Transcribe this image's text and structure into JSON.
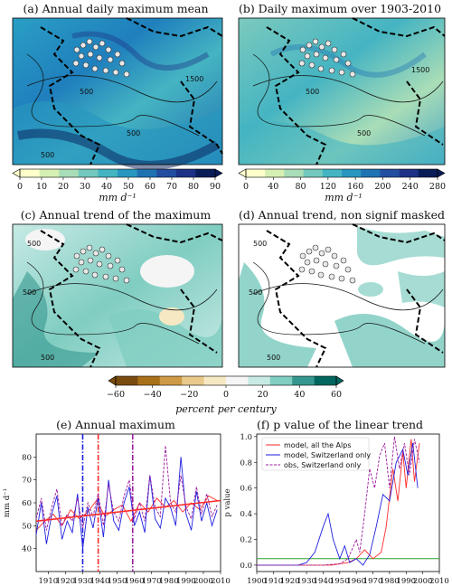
{
  "panels": {
    "a": {
      "title": "(a) Annual daily maximum mean",
      "contours": [
        "500",
        "1500",
        "500",
        "500"
      ]
    },
    "b": {
      "title": "(b) Daily maximum over 1903-2010",
      "contours": [
        "500",
        "1500",
        "500"
      ]
    },
    "c": {
      "title": "(c) Annual trend of the maximum",
      "contours": [
        "500",
        "500",
        "500"
      ]
    },
    "d": {
      "title": "(d) Annual trend, non signif masked",
      "contours": [
        "500",
        "500",
        "500"
      ]
    },
    "e": {
      "title": "(e) Annual maximum"
    },
    "f": {
      "title": "(f) p value of the linear trend"
    }
  },
  "colorbars": {
    "a": {
      "ticks": [
        "0",
        "10",
        "20",
        "30",
        "40",
        "50",
        "60",
        "70",
        "80",
        "90"
      ],
      "label": "mm d⁻¹"
    },
    "b": {
      "ticks": [
        "0",
        "40",
        "80",
        "120",
        "160",
        "200",
        "240",
        "280"
      ],
      "label": "mm d⁻¹"
    },
    "cd": {
      "ticks": [
        "−60",
        "−40",
        "−20",
        "0",
        "20",
        "40",
        "60"
      ],
      "label": "percent per century"
    }
  },
  "colors": {
    "blue_scale": [
      "#ffffcc",
      "#d6efb3",
      "#a9ddb7",
      "#73c9bd",
      "#45b4c2",
      "#2897bf",
      "#2073b2",
      "#234ea0",
      "#1c3185",
      "#081d58"
    ],
    "div_scale": [
      "#7a4b0f",
      "#a9701a",
      "#cf9a45",
      "#e8c98a",
      "#f6e8c3",
      "#f5f5f5",
      "#c7eae5",
      "#80cdc1",
      "#35978f",
      "#01665e"
    ],
    "red": "#ff2a2a",
    "blue": "#1f1fe0",
    "purple": "#9b1b9b",
    "green": "#2ca02c"
  },
  "chart_data": [
    {
      "type": "line",
      "title": "(e) Annual maximum",
      "ylabel": "mm d⁻¹",
      "xlim": [
        1903,
        2010
      ],
      "ylim": [
        30,
        90
      ],
      "xticks": [
        "1910",
        "1920",
        "1930",
        "1940",
        "1950",
        "1960",
        "1970",
        "1980",
        "1990",
        "2000",
        "2010"
      ],
      "yticks": [
        "40",
        "50",
        "60",
        "70",
        "80"
      ],
      "vlines": [
        {
          "x": 1930,
          "color": "blue"
        },
        {
          "x": 1939,
          "color": "red"
        },
        {
          "x": 1959,
          "color": "purple"
        }
      ],
      "series": [
        {
          "color": "red",
          "x": [
            1903,
            1908,
            1913,
            1918,
            1923,
            1928,
            1933,
            1938,
            1943,
            1948,
            1953,
            1958,
            1963,
            1968,
            1973,
            1978,
            1983,
            1988,
            1993,
            1998,
            2003,
            2008
          ],
          "y": [
            48,
            52,
            55,
            50,
            57,
            53,
            56,
            61,
            54,
            57,
            59,
            52,
            60,
            56,
            62,
            58,
            61,
            56,
            60,
            57,
            63,
            61
          ]
        },
        {
          "color": "blue",
          "x": [
            1903,
            1906,
            1909,
            1912,
            1915,
            1918,
            1921,
            1924,
            1927,
            1930,
            1933,
            1936,
            1939,
            1942,
            1945,
            1948,
            1951,
            1954,
            1957,
            1960,
            1963,
            1966,
            1969,
            1972,
            1975,
            1978,
            1981,
            1984,
            1987,
            1990,
            1993,
            1996,
            1999,
            2002,
            2005,
            2008
          ],
          "y": [
            46,
            60,
            42,
            55,
            63,
            44,
            52,
            47,
            64,
            40,
            58,
            49,
            62,
            45,
            70,
            52,
            48,
            60,
            67,
            50,
            56,
            47,
            72,
            53,
            49,
            62,
            58,
            50,
            80,
            55,
            48,
            65,
            52,
            60,
            50,
            57
          ]
        },
        {
          "color": "purple",
          "dashed": true,
          "x": [
            1903,
            1906,
            1909,
            1912,
            1915,
            1918,
            1921,
            1924,
            1927,
            1930,
            1933,
            1936,
            1939,
            1942,
            1945,
            1948,
            1951,
            1954,
            1957,
            1960,
            1963,
            1966,
            1969,
            1972,
            1975,
            1978,
            1981,
            1984,
            1987,
            1990,
            1993,
            1996,
            1999,
            2002,
            2005,
            2008
          ],
          "y": [
            53,
            62,
            48,
            58,
            66,
            50,
            55,
            52,
            62,
            49,
            60,
            54,
            64,
            50,
            68,
            56,
            52,
            63,
            70,
            53,
            60,
            52,
            72,
            58,
            54,
            85,
            60,
            56,
            72,
            58,
            53,
            67,
            55,
            64,
            54,
            59
          ]
        },
        {
          "color": "red",
          "name": "trend",
          "x": [
            1903,
            2010
          ],
          "y": [
            52,
            61
          ]
        }
      ]
    },
    {
      "type": "line",
      "title": "(f) p value of the linear trend",
      "ylabel": "p value",
      "xlim": [
        1900,
        2010
      ],
      "ylim": [
        -0.05,
        1.02
      ],
      "xticks": [
        "1900",
        "1910",
        "1920",
        "1930",
        "1940",
        "1950",
        "1960",
        "1970",
        "1980",
        "1990",
        "2000",
        "2010"
      ],
      "yticks": [
        "0.0",
        "0.2",
        "0.4",
        "0.6",
        "0.8",
        "1.0"
      ],
      "hline": {
        "y": 0.05,
        "color": "green"
      },
      "legend": [
        "model, all the Alps",
        "model, Switzerland only",
        "obs, Switzerland only"
      ],
      "legend_position": "top-left",
      "series": [
        {
          "name": "model, all the Alps",
          "color": "red",
          "x": [
            1900,
            1930,
            1945,
            1950,
            1955,
            1960,
            1965,
            1970,
            1975,
            1978,
            1982,
            1985,
            1988,
            1990,
            1993,
            1995,
            1998
          ],
          "y": [
            0.0,
            0.0,
            0.0,
            0.01,
            0.02,
            0.05,
            0.12,
            0.05,
            0.1,
            0.3,
            0.75,
            0.5,
            0.88,
            0.6,
            0.98,
            0.65,
            0.95
          ]
        },
        {
          "name": "model, Switzerland only",
          "color": "blue",
          "x": [
            1900,
            1925,
            1930,
            1935,
            1940,
            1943,
            1946,
            1950,
            1953,
            1956,
            1960,
            1964,
            1968,
            1972,
            1976,
            1980,
            1984,
            1988,
            1991,
            1994,
            1997
          ],
          "y": [
            0.0,
            0.0,
            0.02,
            0.1,
            0.3,
            0.4,
            0.2,
            0.05,
            0.15,
            0.02,
            0.05,
            0.0,
            0.08,
            0.3,
            0.55,
            0.5,
            0.8,
            0.9,
            0.7,
            0.95,
            0.6
          ]
        },
        {
          "name": "obs, Switzerland only",
          "color": "purple",
          "dashed": true,
          "x": [
            1900,
            1940,
            1950,
            1955,
            1960,
            1962,
            1965,
            1968,
            1971,
            1974,
            1977,
            1980,
            1983,
            1986,
            1989,
            1992,
            1995,
            1998
          ],
          "y": [
            0.0,
            0.0,
            0.01,
            0.05,
            0.2,
            0.1,
            0.4,
            0.75,
            0.6,
            0.85,
            0.95,
            0.6,
            1.0,
            0.75,
            0.95,
            0.7,
            0.98,
            0.8
          ]
        }
      ]
    }
  ]
}
